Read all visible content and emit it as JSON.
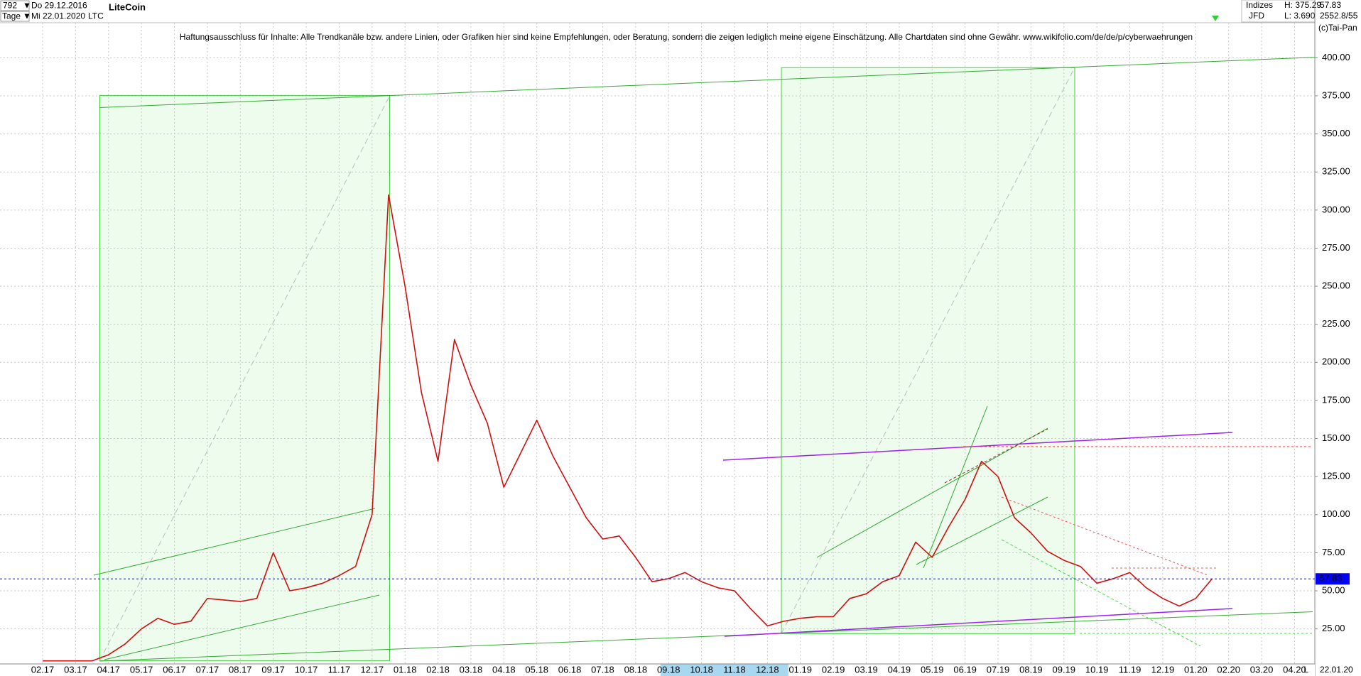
{
  "header": {
    "count": "792",
    "period": "Tage",
    "date_from": "Do 29.12.2016",
    "date_to": "Mi 22.01.2020",
    "symbol": "LTC",
    "market": "Indizes",
    "source": "JFD",
    "high": "H: 375.29",
    "low": "L: 3.690",
    "last": "57.83",
    "stat": "2552.8/55",
    "copyright": "(c)Tai-Pan",
    "end_date": "22.01.20",
    "scale_mode": "L"
  },
  "chart_data": {
    "type": "line",
    "title": "LiteCoin",
    "annotation": "Haftungsausschluss für Inhalte: Alle Trendkanäle bzw. andere Linien, oder Grafiken hier sind keine Empfehlungen, oder Beratung, sondern die zeigen lediglich meine eigene Einschätzung. Alle Chartdaten sind ohne Gewähr.  www.wikifolio.com/de/de/p/cyberwaehrungen",
    "categories": [
      "02.17",
      null,
      "03.17",
      null,
      "04.17",
      null,
      "05.17",
      null,
      "06.17",
      null,
      "07.17",
      null,
      "08.17",
      null,
      "09.17",
      null,
      "10.17",
      null,
      "11.17",
      null,
      "12.17",
      null,
      "01.18",
      null,
      "02.18",
      null,
      "03.18",
      null,
      "04.18",
      null,
      "05.18",
      null,
      "06.18",
      null,
      "07.18",
      null,
      "08.18",
      null,
      "09.18",
      null,
      "10.18",
      null,
      "11.18",
      null,
      "12.18",
      null,
      "01.19",
      null,
      "02.19",
      null,
      "03.19",
      null,
      "04.19",
      null,
      "05.19",
      null,
      "06.19",
      null,
      "07.19",
      null,
      "08.19",
      null,
      "09.19",
      null,
      "10.19",
      null,
      "11.19",
      null,
      "12.19",
      null,
      "01.20",
      null,
      "02.20",
      null,
      "03.20",
      null,
      "04.20",
      null
    ],
    "values": [
      4,
      4,
      4,
      4,
      8,
      15,
      25,
      32,
      28,
      30,
      45,
      44,
      43,
      45,
      75,
      50,
      52,
      55,
      60,
      66,
      100,
      310,
      250,
      180,
      135,
      215,
      185,
      160,
      118,
      140,
      162,
      138,
      118,
      98,
      84,
      86,
      72,
      56,
      58,
      62,
      56,
      52,
      50,
      38,
      27,
      30,
      32,
      33,
      33,
      45,
      48,
      56,
      60,
      82,
      72,
      92,
      110,
      135,
      125,
      98,
      88,
      76,
      70,
      66,
      55,
      58,
      62,
      52,
      45,
      40,
      45,
      58,
      null,
      null,
      null,
      null,
      null,
      null
    ],
    "color": "#d01010",
    "current_price": 57.83,
    "current_price_color": "#0000ff",
    "ylim": [
      2,
      423
    ],
    "yticks": [
      {
        "value": 25,
        "label": "25.00"
      },
      {
        "value": 50,
        "label": "50.00"
      },
      {
        "value": 75,
        "label": "75.00"
      },
      {
        "value": 100,
        "label": "100.00"
      },
      {
        "value": 125,
        "label": "125.00"
      },
      {
        "value": 150,
        "label": "150.00"
      },
      {
        "value": 175,
        "label": "175.00"
      },
      {
        "value": 200,
        "label": "200.00"
      },
      {
        "value": 225,
        "label": "225.00"
      },
      {
        "value": 250,
        "label": "250.00"
      },
      {
        "value": 275,
        "label": "275.00"
      },
      {
        "value": 300,
        "label": "300.00"
      },
      {
        "value": 325,
        "label": "325.00"
      },
      {
        "value": 350,
        "label": "350.00"
      },
      {
        "value": 375,
        "label": "375.00"
      },
      {
        "value": 400,
        "label": "400.00"
      }
    ],
    "grid": true
  }
}
